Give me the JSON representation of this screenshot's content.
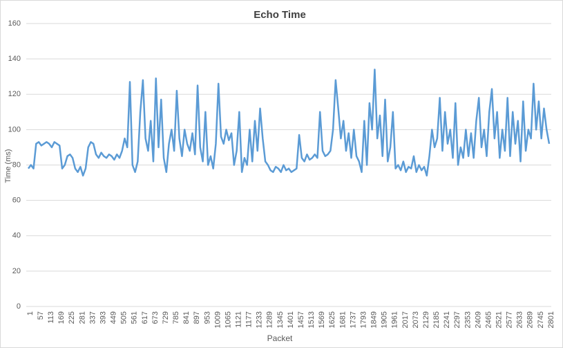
{
  "chart_data": {
    "type": "line",
    "title": "Echo Time",
    "xlabel": "Packet",
    "ylabel": "Time (ms)",
    "x": [
      1,
      15,
      29,
      43,
      57,
      71,
      85,
      99,
      113,
      127,
      141,
      155,
      169,
      183,
      197,
      211,
      225,
      239,
      253,
      267,
      281,
      295,
      309,
      323,
      337,
      351,
      365,
      379,
      393,
      407,
      421,
      435,
      449,
      463,
      477,
      491,
      505,
      519,
      533,
      547,
      561,
      575,
      589,
      603,
      617,
      631,
      645,
      659,
      673,
      687,
      701,
      715,
      729,
      743,
      757,
      771,
      785,
      799,
      813,
      827,
      841,
      855,
      869,
      883,
      897,
      911,
      925,
      939,
      953,
      967,
      981,
      995,
      1009,
      1023,
      1037,
      1051,
      1065,
      1079,
      1093,
      1107,
      1121,
      1135,
      1149,
      1163,
      1177,
      1191,
      1205,
      1219,
      1233,
      1247,
      1261,
      1275,
      1289,
      1303,
      1317,
      1331,
      1345,
      1359,
      1373,
      1387,
      1401,
      1415,
      1429,
      1443,
      1457,
      1471,
      1485,
      1499,
      1513,
      1527,
      1541,
      1555,
      1569,
      1583,
      1597,
      1611,
      1625,
      1639,
      1653,
      1667,
      1681,
      1695,
      1709,
      1723,
      1737,
      1751,
      1765,
      1779,
      1793,
      1807,
      1821,
      1835,
      1849,
      1863,
      1877,
      1891,
      1905,
      1919,
      1933,
      1947,
      1961,
      1975,
      1989,
      2003,
      2017,
      2031,
      2045,
      2059,
      2073,
      2087,
      2101,
      2115,
      2129,
      2143,
      2157,
      2171,
      2185,
      2199,
      2213,
      2227,
      2241,
      2255,
      2269,
      2283,
      2297,
      2311,
      2325,
      2339,
      2353,
      2367,
      2381,
      2395,
      2409,
      2423,
      2437,
      2451,
      2465,
      2479,
      2493,
      2507,
      2521,
      2535,
      2549,
      2563,
      2577,
      2591,
      2605,
      2619,
      2633,
      2647,
      2661,
      2675,
      2689,
      2703,
      2717,
      2731,
      2745,
      2759,
      2773,
      2787,
      2801
    ],
    "series": [
      {
        "color": "#5b9bd5",
        "values": [
          78,
          80,
          78,
          92,
          93,
          91,
          92,
          93,
          92,
          90,
          93,
          92,
          91,
          78,
          80,
          85,
          86,
          84,
          78,
          76,
          79,
          74,
          78,
          90,
          93,
          92,
          86,
          84,
          87,
          85,
          84,
          86,
          85,
          83,
          86,
          84,
          88,
          95,
          90,
          127,
          80,
          76,
          82,
          110,
          128,
          95,
          88,
          105,
          82,
          129,
          90,
          117,
          84,
          76,
          92,
          100,
          88,
          122,
          95,
          85,
          100,
          92,
          88,
          98,
          86,
          125,
          90,
          82,
          110,
          80,
          85,
          78,
          92,
          126,
          96,
          92,
          100,
          94,
          98,
          80,
          88,
          110,
          76,
          84,
          80,
          100,
          82,
          105,
          88,
          112,
          95,
          82,
          80,
          77,
          76,
          79,
          78,
          76,
          80,
          77,
          78,
          76,
          77,
          78,
          97,
          84,
          82,
          86,
          83,
          84,
          86,
          84,
          110,
          88,
          85,
          86,
          88,
          100,
          128,
          112,
          95,
          105,
          88,
          98,
          84,
          100,
          85,
          82,
          76,
          105,
          80,
          115,
          100,
          134,
          95,
          108,
          85,
          117,
          82,
          90,
          110,
          78,
          80,
          77,
          82,
          76,
          79,
          78,
          85,
          76,
          80,
          77,
          79,
          74,
          85,
          100,
          90,
          95,
          118,
          88,
          110,
          92,
          100,
          84,
          115,
          80,
          90,
          84,
          100,
          85,
          98,
          84,
          105,
          118,
          90,
          100,
          85,
          110,
          123,
          95,
          110,
          84,
          100,
          88,
          118,
          85,
          110,
          92,
          105,
          82,
          116,
          88,
          100,
          95,
          126,
          100,
          116,
          95,
          112,
          100,
          92
        ]
      }
    ],
    "xlim": [
      1,
      2801
    ],
    "xticks": [
      1,
      57,
      113,
      169,
      225,
      281,
      337,
      393,
      449,
      505,
      561,
      617,
      673,
      729,
      785,
      841,
      897,
      953,
      1009,
      1065,
      1121,
      1177,
      1233,
      1289,
      1345,
      1401,
      1457,
      1513,
      1569,
      1625,
      1681,
      1737,
      1793,
      1849,
      1905,
      1961,
      2017,
      2073,
      2129,
      2185,
      2241,
      2297,
      2353,
      2409,
      2465,
      2521,
      2577,
      2633,
      2689,
      2745,
      2801
    ],
    "ylim": [
      0,
      160
    ],
    "yticks": [
      0,
      20,
      40,
      60,
      80,
      100,
      120,
      140,
      160
    ],
    "grid": true
  }
}
